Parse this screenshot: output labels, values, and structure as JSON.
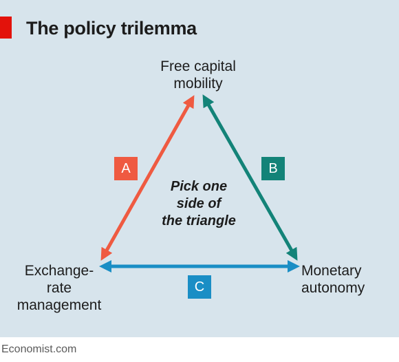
{
  "title": "The policy trilemma",
  "nodes": {
    "top": [
      "Free capital",
      "mobility"
    ],
    "left": [
      "Exchange-",
      "rate",
      "management"
    ],
    "right": [
      "Monetary",
      "autonomy"
    ]
  },
  "center_text": [
    "Pick one",
    "side of",
    "the triangle"
  ],
  "sides": [
    {
      "label": "A",
      "color": "#ef5a41"
    },
    {
      "label": "B",
      "color": "#138378"
    },
    {
      "label": "C",
      "color": "#1a8ec5"
    }
  ],
  "source": "Economist.com",
  "colors": {
    "background": "#d7e4ec",
    "accent": "#e3120b"
  }
}
